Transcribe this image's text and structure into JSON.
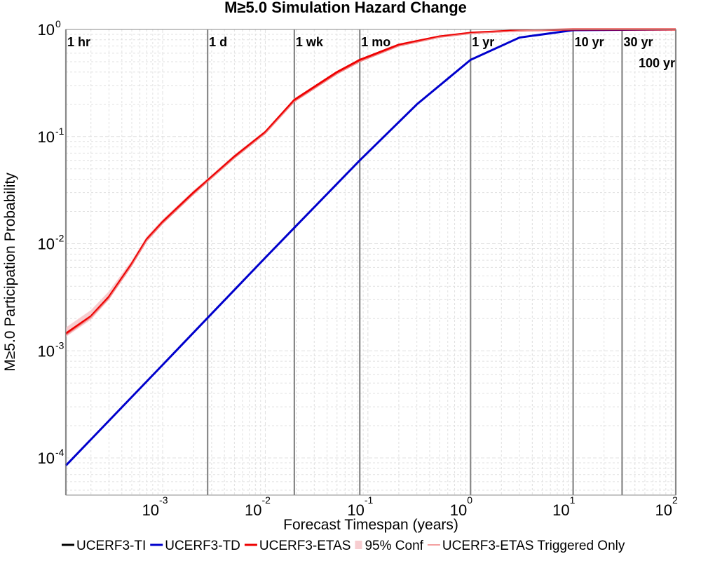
{
  "chart_data": {
    "type": "line",
    "title": "M≥5.0 Simulation Hazard Change",
    "xlabel": "Forecast Timespan (years)",
    "ylabel": "M≥5.0 Participation Probability",
    "x_scale": "log",
    "y_scale": "log",
    "xlim": [
      0.000114,
      100
    ],
    "ylim": [
      4.5e-05,
      1
    ],
    "grid": true,
    "legend_position": "bottom",
    "x_ticks": [
      {
        "base": "10",
        "exp": "-3",
        "value": 0.001
      },
      {
        "base": "10",
        "exp": "-2",
        "value": 0.01
      },
      {
        "base": "10",
        "exp": "-1",
        "value": 0.1
      },
      {
        "base": "10",
        "exp": "0",
        "value": 1
      },
      {
        "base": "10",
        "exp": "1",
        "value": 10
      },
      {
        "base": "10",
        "exp": "2",
        "value": 100
      }
    ],
    "y_ticks": [
      {
        "base": "10",
        "exp": "0",
        "value": 1
      },
      {
        "base": "10",
        "exp": "-1",
        "value": 0.1
      },
      {
        "base": "10",
        "exp": "-2",
        "value": 0.01
      },
      {
        "base": "10",
        "exp": "-3",
        "value": 0.001
      },
      {
        "base": "10",
        "exp": "-4",
        "value": 0.0001
      }
    ],
    "time_markers": [
      {
        "label": "1 hr",
        "x": 0.000114
      },
      {
        "label": "1 d",
        "x": 0.00274
      },
      {
        "label": "1 wk",
        "x": 0.0192
      },
      {
        "label": "1 mo",
        "x": 0.0833
      },
      {
        "label": "1 yr",
        "x": 1
      },
      {
        "label": "10 yr",
        "x": 10
      },
      {
        "label": "30 yr",
        "x": 30
      },
      {
        "label": "100 yr",
        "x": 100
      }
    ],
    "series": [
      {
        "name": "UCERF3-TI",
        "color": "#000000",
        "x": [],
        "y": []
      },
      {
        "name": "UCERF3-TD",
        "color": "#0000cc",
        "x": [
          0.000114,
          0.001,
          0.00274,
          0.01,
          0.0192,
          0.0833,
          0.3,
          1,
          3,
          10,
          100
        ],
        "y": [
          8.5e-05,
          0.00074,
          0.00203,
          0.0074,
          0.0141,
          0.06,
          0.2,
          0.52,
          0.84,
          0.985,
          1.0
        ]
      },
      {
        "name": "UCERF3-ETAS",
        "color": "#ee0000",
        "x": [
          0.000114,
          0.0002,
          0.0003,
          0.0005,
          0.0007,
          0.001,
          0.002,
          0.00274,
          0.005,
          0.01,
          0.0192,
          0.05,
          0.0833,
          0.2,
          0.5,
          1,
          3,
          10,
          100
        ],
        "y": [
          0.00145,
          0.0021,
          0.0032,
          0.0065,
          0.011,
          0.016,
          0.03,
          0.039,
          0.065,
          0.11,
          0.22,
          0.4,
          0.52,
          0.72,
          0.86,
          0.93,
          0.98,
          1.0,
          1.0
        ]
      },
      {
        "name": "95% Conf",
        "color": "#f7cdd0",
        "x": [
          0.000114,
          0.0002,
          0.0003,
          0.0005,
          0.0007,
          0.001,
          0.002,
          0.00274,
          0.005,
          0.01,
          0.0192,
          0.05,
          0.0833,
          0.2,
          0.5,
          1,
          3,
          10,
          100
        ],
        "lower": [
          0.00135,
          0.00195,
          0.003,
          0.0061,
          0.0104,
          0.0152,
          0.0287,
          0.0374,
          0.0625,
          0.1065,
          0.214,
          0.39,
          0.51,
          0.71,
          0.855,
          0.925,
          0.978,
          0.999,
          1.0
        ],
        "upper": [
          0.00165,
          0.0024,
          0.0036,
          0.007,
          0.0117,
          0.0169,
          0.0315,
          0.0408,
          0.068,
          0.1145,
          0.228,
          0.41,
          0.53,
          0.73,
          0.866,
          0.935,
          0.982,
          1.0,
          1.0
        ]
      },
      {
        "name": "UCERF3-ETAS Triggered Only",
        "color": "#f08080",
        "x": [
          0.000114,
          0.0002,
          0.0003,
          0.0005,
          0.0007,
          0.001,
          0.002,
          0.00274,
          0.005,
          0.01,
          0.0192,
          0.05,
          0.0833,
          0.2,
          0.5,
          1,
          3,
          10,
          100
        ],
        "y": [
          0.0014,
          0.00205,
          0.0031,
          0.0063,
          0.0107,
          0.0155,
          0.029,
          0.038,
          0.063,
          0.107,
          0.212,
          0.385,
          0.5,
          0.7,
          0.845,
          0.915,
          0.97,
          0.998,
          1.0
        ]
      }
    ]
  }
}
